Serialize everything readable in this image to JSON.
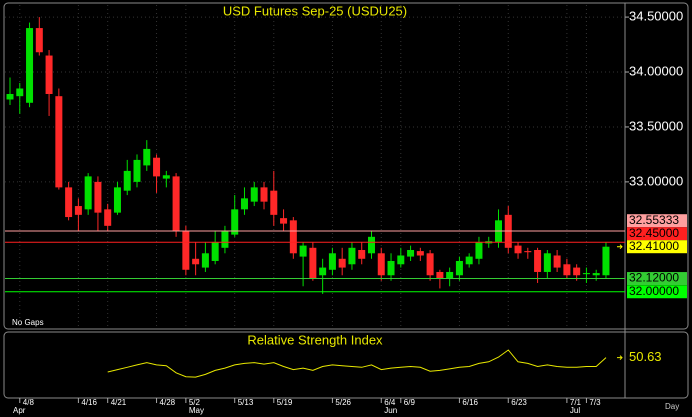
{
  "chart_data": [
    {
      "type": "candlestick",
      "title": "USD Futures Sep-25 (USDU25)",
      "categories": [
        null,
        "4/8",
        null,
        null,
        null,
        null,
        null,
        "4/16",
        null,
        null,
        "4/21",
        null,
        null,
        null,
        null,
        "4/28",
        null,
        null,
        "5/2",
        null,
        null,
        null,
        null,
        "5/13",
        null,
        null,
        null,
        "5/19",
        null,
        null,
        null,
        null,
        null,
        "5/26",
        null,
        null,
        null,
        null,
        "6/4",
        null,
        "6/9",
        null,
        null,
        null,
        null,
        null,
        "6/16",
        null,
        null,
        null,
        null,
        "6/23",
        null,
        null,
        null,
        null,
        null,
        "7/1",
        null,
        "7/3",
        null,
        null
      ],
      "month_labels": [
        "Apr",
        null,
        null,
        null,
        null,
        null,
        null,
        null,
        null,
        null,
        null,
        null,
        null,
        null,
        null,
        null,
        null,
        null,
        "May",
        null,
        null,
        null,
        null,
        null,
        null,
        null,
        null,
        null,
        null,
        null,
        null,
        null,
        null,
        null,
        null,
        null,
        null,
        null,
        "Jun",
        null,
        null,
        null,
        null,
        null,
        null,
        null,
        null,
        null,
        null,
        null,
        null,
        null,
        null,
        null,
        null,
        null,
        null,
        "Jul",
        null,
        null,
        null,
        null
      ],
      "open": [
        33.75,
        33.78,
        33.72,
        34.4,
        34.15,
        33.78,
        32.95,
        32.78,
        32.75,
        33.0,
        32.75,
        32.72,
        32.92,
        33.0,
        33.15,
        33.22,
        33.03,
        33.05,
        32.55,
        32.3,
        32.22,
        32.28,
        32.4,
        32.52,
        32.75,
        32.82,
        32.95,
        32.92,
        32.67,
        32.65,
        32.32,
        32.4,
        32.15,
        32.2,
        32.3,
        32.25,
        32.38,
        32.35,
        32.35,
        32.15,
        32.25,
        32.32,
        32.37,
        32.35,
        32.18,
        32.12,
        32.15,
        32.25,
        32.3,
        32.44,
        32.45,
        32.7,
        32.42,
        32.37,
        32.38,
        32.18,
        32.33,
        32.25,
        32.22,
        32.16,
        32.15,
        32.15
      ],
      "high": [
        33.95,
        33.9,
        34.45,
        34.5,
        34.2,
        33.85,
        33.0,
        32.85,
        33.08,
        33.05,
        32.8,
        33.0,
        33.2,
        33.25,
        33.38,
        33.25,
        33.1,
        33.08,
        32.6,
        32.45,
        32.45,
        32.55,
        32.6,
        32.88,
        32.95,
        33.0,
        33.0,
        33.1,
        32.75,
        32.68,
        32.45,
        32.45,
        32.3,
        32.4,
        32.4,
        32.45,
        32.45,
        32.55,
        32.4,
        32.35,
        32.4,
        32.42,
        32.4,
        32.38,
        32.2,
        32.22,
        32.32,
        32.35,
        32.5,
        32.5,
        32.75,
        32.78,
        32.45,
        32.4,
        32.4,
        32.38,
        32.38,
        32.3,
        32.25,
        32.22,
        32.2,
        32.45
      ],
      "low": [
        33.7,
        33.62,
        33.68,
        34.15,
        33.6,
        32.93,
        32.65,
        32.55,
        32.7,
        32.55,
        32.55,
        32.7,
        32.88,
        32.95,
        33.1,
        32.9,
        32.95,
        32.5,
        32.15,
        32.15,
        32.18,
        32.25,
        32.35,
        32.5,
        32.7,
        32.78,
        32.75,
        32.6,
        32.55,
        32.3,
        32.05,
        32.1,
        31.98,
        32.15,
        32.15,
        32.2,
        32.25,
        32.3,
        32.1,
        32.1,
        32.22,
        32.28,
        32.28,
        32.1,
        32.03,
        32.05,
        32.1,
        32.22,
        32.25,
        32.4,
        32.4,
        32.35,
        32.3,
        32.3,
        32.08,
        32.12,
        32.18,
        32.12,
        32.1,
        32.08,
        32.1,
        32.12
      ],
      "close": [
        33.8,
        33.85,
        34.4,
        34.18,
        33.8,
        32.95,
        32.68,
        32.7,
        33.05,
        32.72,
        32.6,
        32.95,
        33.1,
        33.2,
        33.3,
        33.05,
        33.06,
        32.55,
        32.2,
        32.25,
        32.35,
        32.45,
        32.55,
        32.75,
        32.85,
        32.95,
        32.82,
        32.7,
        32.62,
        32.35,
        32.42,
        32.12,
        32.22,
        32.35,
        32.22,
        32.4,
        32.3,
        32.5,
        32.15,
        32.28,
        32.33,
        32.38,
        32.33,
        32.15,
        32.12,
        32.18,
        32.28,
        32.32,
        32.45,
        32.46,
        32.65,
        32.4,
        32.35,
        32.36,
        32.18,
        32.35,
        32.22,
        32.15,
        32.15,
        32.17,
        32.17,
        32.41
      ],
      "up_color": "#00e000",
      "down_color": "#ff2828",
      "ylim": [
        31.67,
        34.61
      ],
      "yticks": [
        {
          "value": 34.5,
          "label": "34.50000"
        },
        {
          "value": 34.0,
          "label": "34.00000"
        },
        {
          "value": 33.5,
          "label": "33.50000"
        },
        {
          "value": 33.0,
          "label": "33.00000"
        }
      ],
      "grid": true,
      "levels": [
        {
          "value": 32.55333,
          "label": "32.55333",
          "color": "#ff9f9f",
          "line": true
        },
        {
          "value": 32.45,
          "label": "32.45000",
          "color": "#ff2020",
          "line": true
        },
        {
          "value": 32.41,
          "label": "32.41000",
          "color": "#ffff00",
          "line": false
        },
        {
          "value": 32.12,
          "label": "32.12000",
          "color": "#33cc33",
          "line": true
        },
        {
          "value": 32.0,
          "label": "32.00000",
          "color": "#00ff00",
          "line": true
        }
      ],
      "annotations": [
        "No Gaps",
        "Day"
      ]
    },
    {
      "type": "line",
      "title": "Relative Strength Index",
      "color": "#e8e800",
      "values": [
        null,
        null,
        null,
        null,
        null,
        null,
        null,
        null,
        null,
        null,
        41.5,
        43,
        44.5,
        46,
        47.5,
        46,
        45.5,
        41,
        38.5,
        38.3,
        40,
        42.5,
        44,
        46,
        47,
        47.5,
        46.5,
        47.5,
        45,
        43,
        44,
        42.5,
        45,
        46,
        45.5,
        45,
        44.5,
        46,
        43,
        44,
        44.5,
        45,
        44.5,
        42,
        42.5,
        43.5,
        44.5,
        45,
        47,
        48,
        51,
        55.5,
        48,
        47,
        45,
        46,
        45,
        44.5,
        44.5,
        45,
        45,
        50.63
      ],
      "ylim": [
        25,
        65
      ]
    }
  ]
}
